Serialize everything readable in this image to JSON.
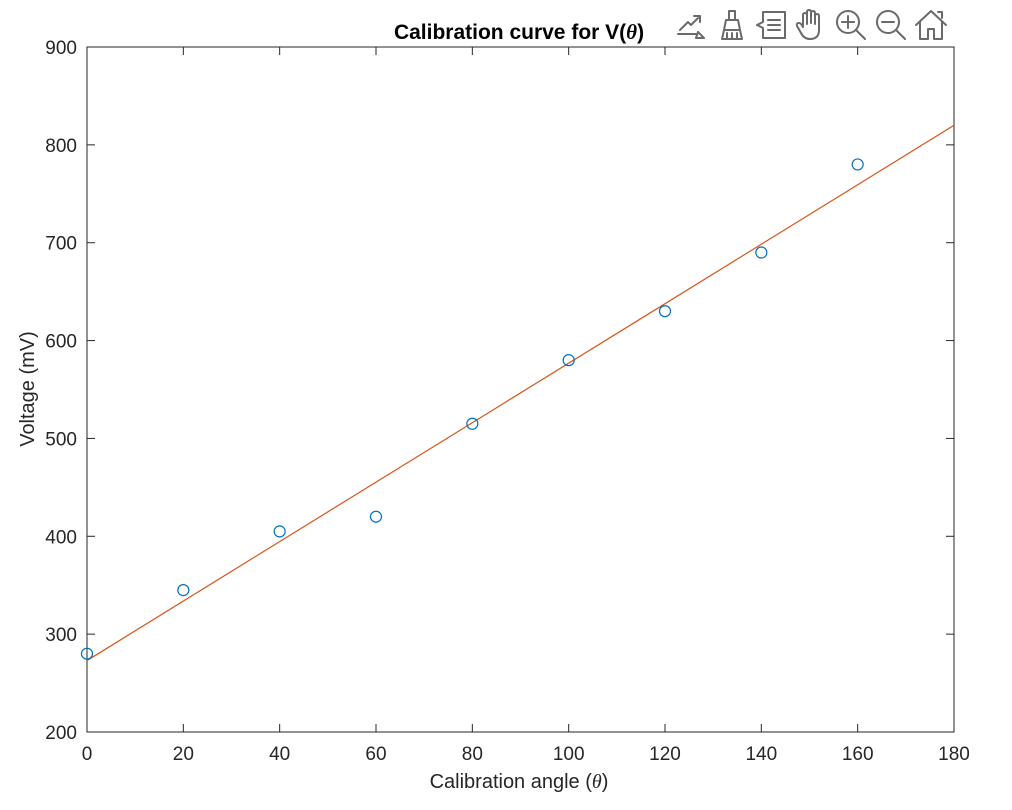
{
  "toolbar": {
    "icons": [
      "export-icon",
      "brush-icon",
      "datatip-icon",
      "pan-icon",
      "zoom-in-icon",
      "zoom-out-icon",
      "home-icon"
    ]
  },
  "colors": {
    "marker": "#0072BD",
    "fit_line": "#D95319",
    "axes": "#262626",
    "grid_text": "#262626"
  },
  "chart_data": {
    "type": "scatter",
    "title_prefix": "Calibration curve for V(",
    "title_var": "θ",
    "title_suffix": ")",
    "xlabel_prefix": "Calibration angle (",
    "xlabel_var": "θ",
    "xlabel_suffix": ")",
    "ylabel": "Voltage (mV)",
    "xlim": [
      0,
      180
    ],
    "ylim": [
      200,
      900
    ],
    "xticks": [
      0,
      20,
      40,
      60,
      80,
      100,
      120,
      140,
      160,
      180
    ],
    "yticks": [
      200,
      300,
      400,
      500,
      600,
      700,
      800,
      900
    ],
    "grid": false,
    "series": [
      {
        "kind": "markers",
        "marker": "circle",
        "x": [
          0,
          20,
          40,
          60,
          80,
          100,
          120,
          140,
          160
        ],
        "y": [
          280,
          345,
          405,
          420,
          515,
          580,
          630,
          690,
          780
        ]
      },
      {
        "kind": "line",
        "x": [
          0,
          180
        ],
        "y": [
          273,
          820
        ]
      }
    ]
  }
}
